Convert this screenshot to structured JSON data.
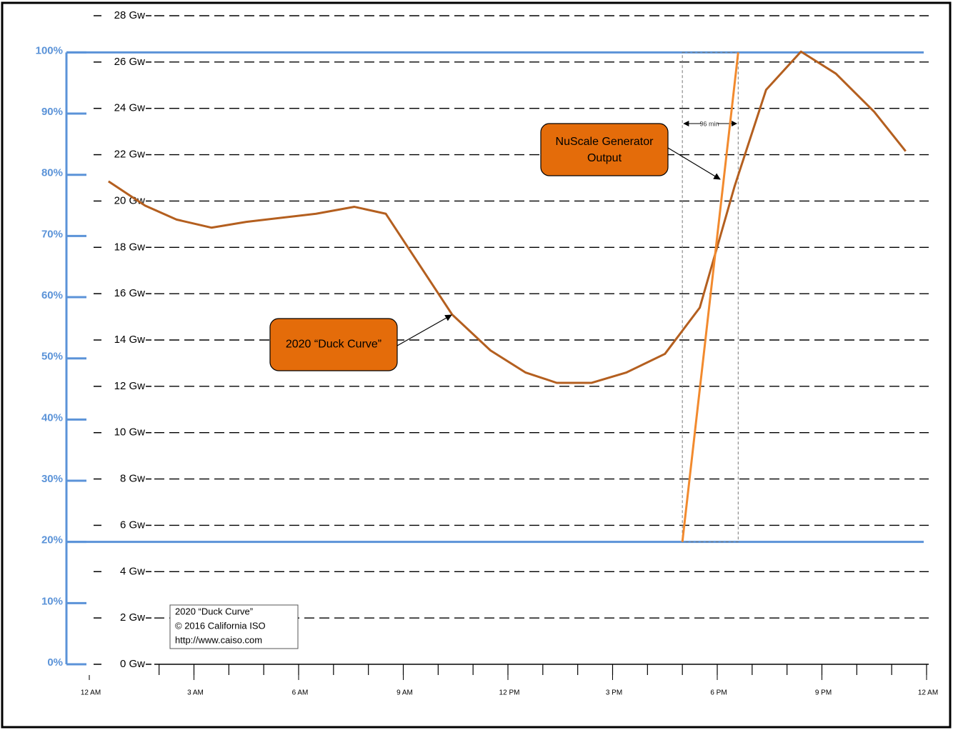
{
  "chart_data": {
    "type": "line",
    "series": [
      {
        "name": "2020 “Duck Curve”",
        "color": "#b45f1f",
        "x": [
          0.55,
          1.6,
          2.5,
          3.5,
          4.5,
          6.5,
          7.6,
          8.5,
          10.4,
          11.5,
          12.5,
          13.4,
          14.4,
          15.4,
          16.5,
          17.5,
          18.5,
          19.4,
          20.4,
          21.4,
          22.5,
          23.4
        ],
        "values": [
          20.85,
          19.8,
          19.2,
          18.85,
          19.1,
          19.45,
          19.75,
          19.45,
          15.1,
          13.55,
          12.6,
          12.15,
          12.15,
          12.6,
          13.4,
          15.4,
          20.65,
          24.8,
          26.45,
          25.5,
          23.85,
          22.15
        ]
      },
      {
        "name": "NuScale Generator Output",
        "color": "#f28a2e",
        "axis": "y2",
        "x": [
          17,
          18.6
        ],
        "values": [
          20,
          100
        ]
      }
    ],
    "xlim": [
      0,
      24
    ],
    "xticks": [
      {
        "value": 0,
        "label": "12 AM"
      },
      {
        "value": 3,
        "label": "3 AM"
      },
      {
        "value": 6,
        "label": "6 AM"
      },
      {
        "value": 9,
        "label": "9 AM"
      },
      {
        "value": 12,
        "label": "12 PM"
      },
      {
        "value": 15,
        "label": "3 PM"
      },
      {
        "value": 18,
        "label": "6 PM"
      },
      {
        "value": 21,
        "label": "9 PM"
      },
      {
        "value": 24,
        "label": "12 AM"
      }
    ],
    "x_minor_step": 1,
    "ylim": [
      0,
      28
    ],
    "yticks": [
      {
        "value": 0,
        "label": "0 Gw"
      },
      {
        "value": 2,
        "label": "2 Gw"
      },
      {
        "value": 4,
        "label": "4 Gw"
      },
      {
        "value": 6,
        "label": "6 Gw"
      },
      {
        "value": 8,
        "label": "8 Gw"
      },
      {
        "value": 10,
        "label": "10 Gw"
      },
      {
        "value": 12,
        "label": "12 Gw"
      },
      {
        "value": 14,
        "label": "14 Gw"
      },
      {
        "value": 16,
        "label": "16 Gw"
      },
      {
        "value": 18,
        "label": "18 Gw"
      },
      {
        "value": 20,
        "label": "20 Gw"
      },
      {
        "value": 22,
        "label": "22 Gw"
      },
      {
        "value": 24,
        "label": "24 Gw"
      },
      {
        "value": 26,
        "label": "26 Gw"
      },
      {
        "value": 28,
        "label": "28 Gw"
      }
    ],
    "y2lim": [
      0,
      106
    ],
    "y2ticks": [
      {
        "value": 0,
        "label": "0%"
      },
      {
        "value": 10,
        "label": "10%"
      },
      {
        "value": 20,
        "label": "20%"
      },
      {
        "value": 30,
        "label": "30%"
      },
      {
        "value": 40,
        "label": "40%"
      },
      {
        "value": 50,
        "label": "50%"
      },
      {
        "value": 60,
        "label": "60%"
      },
      {
        "value": 70,
        "label": "70%"
      },
      {
        "value": 80,
        "label": "80%"
      },
      {
        "value": 90,
        "label": "90%"
      },
      {
        "value": 100,
        "label": "100%"
      }
    ],
    "grid": true,
    "reference_lines": [
      {
        "value": 100,
        "axis": "y2"
      },
      {
        "value": 20,
        "axis": "y2"
      }
    ],
    "span_label": "96 min",
    "source_note": [
      "2020 “Duck Curve”",
      "© 2016 California ISO",
      "http://www.caiso.com"
    ]
  }
}
